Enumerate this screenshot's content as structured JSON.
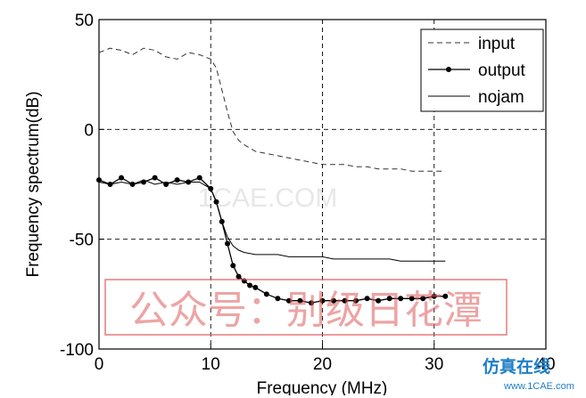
{
  "chart_data": {
    "type": "line",
    "title": "",
    "xlabel": "Frequency (MHz)",
    "ylabel": "Frequency spectrum(dB)",
    "xlim": [
      0,
      40
    ],
    "ylim": [
      -100,
      50
    ],
    "xticks": [
      0,
      10,
      20,
      30,
      40
    ],
    "yticks": [
      -100,
      -50,
      0,
      50
    ],
    "xtick_labels": [
      "0",
      "10",
      "20",
      "30",
      "40"
    ],
    "ytick_labels": [
      "-100",
      "-50",
      "0",
      "50"
    ],
    "grid": true,
    "legend_position": "top-right",
    "series": [
      {
        "name": "input",
        "style": "dashed",
        "color": "#333333",
        "x": [
          0,
          1,
          2,
          3,
          4,
          5,
          6,
          7,
          8,
          9,
          10,
          10.5,
          11,
          11.5,
          12,
          12.5,
          13,
          14,
          15,
          16,
          17,
          18,
          19,
          20,
          21,
          22,
          23,
          24,
          25,
          26,
          27,
          28,
          29,
          30,
          31
        ],
        "y": [
          35,
          37,
          36,
          34,
          37,
          36,
          33,
          32,
          35,
          34,
          32,
          28,
          18,
          8,
          -1,
          -5,
          -7,
          -10,
          -11,
          -12,
          -13,
          -14,
          -15,
          -16,
          -16,
          -16,
          -17,
          -17,
          -18,
          -18,
          -18,
          -19,
          -19,
          -19,
          -19
        ]
      },
      {
        "name": "output",
        "style": "line-dot",
        "color": "#000000",
        "x": [
          0,
          1,
          2,
          3,
          4,
          5,
          6,
          7,
          8,
          9,
          10,
          10.5,
          11,
          11.5,
          12,
          12.5,
          13,
          13.5,
          14,
          15,
          16,
          17,
          18,
          19,
          20,
          21,
          22,
          23,
          24,
          25,
          26,
          27,
          28,
          29,
          30,
          31
        ],
        "y": [
          -23,
          -25,
          -22,
          -25,
          -24,
          -22,
          -25,
          -23,
          -24,
          -22,
          -27,
          -33,
          -42,
          -52,
          -62,
          -67,
          -69,
          -71,
          -72,
          -75,
          -77,
          -78,
          -78,
          -79,
          -78,
          -78,
          -78,
          -78,
          -77,
          -78,
          -77,
          -77,
          -77,
          -77,
          -76,
          -76
        ]
      },
      {
        "name": "nojam",
        "style": "solid",
        "color": "#000000",
        "x": [
          0,
          1,
          2,
          3,
          4,
          5,
          6,
          7,
          8,
          9,
          10,
          10.5,
          11,
          11.5,
          12,
          12.5,
          13,
          14,
          15,
          16,
          17,
          18,
          19,
          20,
          21,
          22,
          23,
          24,
          25,
          26,
          27,
          28,
          29,
          30,
          31
        ],
        "y": [
          -24,
          -25,
          -24,
          -25,
          -23,
          -25,
          -24,
          -25,
          -24,
          -24,
          -27,
          -33,
          -42,
          -49,
          -53,
          -55,
          -56,
          -57,
          -57,
          -57,
          -58,
          -58,
          -58,
          -58,
          -59,
          -59,
          -59,
          -59,
          -59,
          -59,
          -60,
          -60,
          -60,
          -60,
          -60
        ]
      }
    ]
  },
  "watermarks": {
    "center_text": "1CAE.COM",
    "stamp_text": "公众号：别级日花潭",
    "logo_text": "仿真在线",
    "logo_url": "www.1CAE.com"
  },
  "colors": {
    "axes": "#000000",
    "grid": "#000000",
    "stamp": "#e05a5a",
    "logo": "#1e7ec8"
  }
}
